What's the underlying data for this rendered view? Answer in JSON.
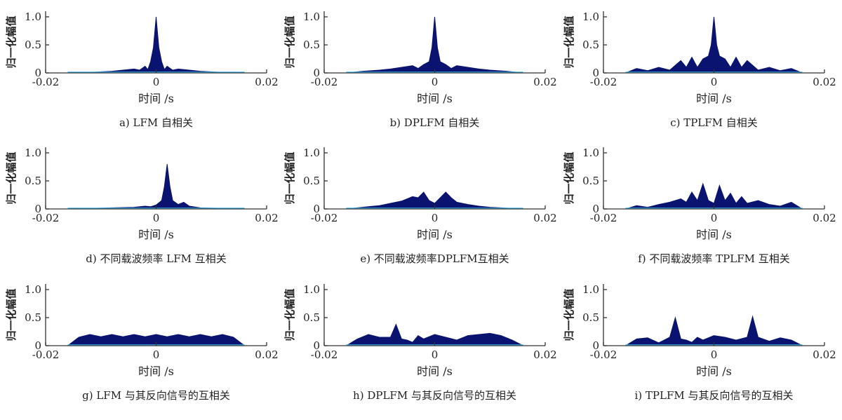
{
  "common": {
    "ylabel": "归一化幅值",
    "xlabel": "时间 /s",
    "xlim": [
      -0.02,
      0.02
    ],
    "ylim": [
      0,
      1.1
    ],
    "xticks": [
      -0.02,
      0,
      0.02
    ],
    "xtick_labels": [
      "-0.02",
      "0",
      "0.02"
    ],
    "yticks": [
      0,
      0.5,
      1.0
    ],
    "ytick_labels": [
      "0",
      "0.5",
      "1.0"
    ],
    "fill_color": "#0a1470",
    "highlight_color": "#3cb4e6"
  },
  "chart_data": [
    {
      "type": "area",
      "caption": "a)  LFM 自相关",
      "x": [
        -0.016,
        -0.012,
        -0.008,
        -0.006,
        -0.004,
        -0.003,
        -0.002,
        -0.0015,
        -0.001,
        -0.0005,
        0,
        0.0005,
        0.001,
        0.0015,
        0.002,
        0.003,
        0.004,
        0.006,
        0.008,
        0.012,
        0.016
      ],
      "y": [
        0,
        0.01,
        0.03,
        0.05,
        0.07,
        0.05,
        0.12,
        0.06,
        0.2,
        0.45,
        1.0,
        0.45,
        0.2,
        0.06,
        0.12,
        0.05,
        0.07,
        0.05,
        0.03,
        0.01,
        0
      ]
    },
    {
      "type": "area",
      "caption": "b)  DPLFM 自相关",
      "x": [
        -0.016,
        -0.013,
        -0.01,
        -0.008,
        -0.006,
        -0.004,
        -0.003,
        -0.002,
        -0.001,
        -0.0005,
        0,
        0.0005,
        0.001,
        0.002,
        0.003,
        0.004,
        0.006,
        0.008,
        0.01,
        0.013,
        0.016
      ],
      "y": [
        0,
        0.03,
        0.05,
        0.07,
        0.1,
        0.13,
        0.08,
        0.15,
        0.2,
        0.45,
        1.0,
        0.45,
        0.2,
        0.15,
        0.08,
        0.13,
        0.1,
        0.07,
        0.05,
        0.03,
        0
      ]
    },
    {
      "type": "area",
      "caption": "c)  TPLFM 自相关",
      "x": [
        -0.016,
        -0.014,
        -0.012,
        -0.01,
        -0.008,
        -0.006,
        -0.005,
        -0.004,
        -0.003,
        -0.002,
        -0.001,
        -0.0005,
        0,
        0.0005,
        0.001,
        0.002,
        0.003,
        0.004,
        0.005,
        0.006,
        0.008,
        0.01,
        0.012,
        0.014,
        0.016
      ],
      "y": [
        0,
        0.08,
        0.04,
        0.1,
        0.05,
        0.22,
        0.1,
        0.28,
        0.1,
        0.25,
        0.3,
        0.5,
        1.0,
        0.5,
        0.3,
        0.25,
        0.1,
        0.28,
        0.1,
        0.22,
        0.05,
        0.1,
        0.04,
        0.08,
        0
      ]
    },
    {
      "type": "area",
      "caption": "d)  不同载波频率 LFM 互相关",
      "x": [
        -0.016,
        -0.012,
        -0.008,
        -0.004,
        -0.002,
        -0.001,
        0,
        0.001,
        0.0015,
        0.002,
        0.0025,
        0.003,
        0.004,
        0.005,
        0.006,
        0.008,
        0.012,
        0.016
      ],
      "y": [
        0,
        0.01,
        0.02,
        0.03,
        0.05,
        0.04,
        0.07,
        0.15,
        0.4,
        0.8,
        0.4,
        0.15,
        0.08,
        0.12,
        0.05,
        0.02,
        0.01,
        0
      ]
    },
    {
      "type": "area",
      "caption": "e)  不同载波频率DPLFM互相关",
      "x": [
        -0.016,
        -0.014,
        -0.012,
        -0.01,
        -0.008,
        -0.006,
        -0.004,
        -0.003,
        -0.002,
        -0.001,
        0,
        0.001,
        0.002,
        0.003,
        0.004,
        0.006,
        0.008,
        0.01,
        0.012,
        0.014,
        0.016
      ],
      "y": [
        0,
        0.02,
        0.04,
        0.06,
        0.1,
        0.14,
        0.22,
        0.2,
        0.3,
        0.15,
        0.1,
        0.2,
        0.3,
        0.2,
        0.12,
        0.08,
        0.05,
        0.03,
        0.02,
        0.01,
        0
      ]
    },
    {
      "type": "area",
      "caption": "f)  不同载波频率 TPLFM 互相关",
      "x": [
        -0.016,
        -0.014,
        -0.012,
        -0.01,
        -0.008,
        -0.006,
        -0.005,
        -0.004,
        -0.003,
        -0.002,
        -0.001,
        0,
        0.001,
        0.002,
        0.003,
        0.004,
        0.005,
        0.006,
        0.008,
        0.01,
        0.012,
        0.014,
        0.016
      ],
      "y": [
        0,
        0.06,
        0.03,
        0.08,
        0.12,
        0.18,
        0.12,
        0.3,
        0.15,
        0.45,
        0.15,
        0.1,
        0.42,
        0.15,
        0.28,
        0.1,
        0.22,
        0.1,
        0.15,
        0.08,
        0.05,
        0.12,
        0
      ]
    },
    {
      "type": "area",
      "caption": "g)  LFM 与其反向信号的互相关",
      "x": [
        -0.016,
        -0.014,
        -0.012,
        -0.01,
        -0.008,
        -0.006,
        -0.004,
        -0.002,
        0,
        0.002,
        0.004,
        0.006,
        0.008,
        0.01,
        0.012,
        0.014,
        0.016
      ],
      "y": [
        0,
        0.15,
        0.2,
        0.16,
        0.2,
        0.16,
        0.2,
        0.16,
        0.2,
        0.16,
        0.2,
        0.16,
        0.2,
        0.16,
        0.2,
        0.15,
        0
      ]
    },
    {
      "type": "area",
      "caption": "h)  DPLFM 与其反向信号的互相关",
      "x": [
        -0.016,
        -0.014,
        -0.012,
        -0.01,
        -0.008,
        -0.007,
        -0.006,
        -0.005,
        -0.004,
        -0.003,
        -0.002,
        0,
        0.002,
        0.004,
        0.006,
        0.008,
        0.01,
        0.012,
        0.014,
        0.016
      ],
      "y": [
        0,
        0.12,
        0.2,
        0.15,
        0.15,
        0.38,
        0.12,
        0.1,
        0.06,
        0.18,
        0.12,
        0.2,
        0.15,
        0.1,
        0.18,
        0.2,
        0.22,
        0.18,
        0.1,
        0
      ]
    },
    {
      "type": "area",
      "caption": "i) TPLFM 与其反向信号的互相关",
      "x": [
        -0.016,
        -0.014,
        -0.012,
        -0.01,
        -0.008,
        -0.007,
        -0.006,
        -0.005,
        -0.004,
        -0.003,
        -0.002,
        0,
        0.002,
        0.004,
        0.006,
        0.007,
        0.008,
        0.01,
        0.012,
        0.014,
        0.016
      ],
      "y": [
        0,
        0.12,
        0.14,
        0.05,
        0.15,
        0.5,
        0.12,
        0.1,
        0.06,
        0.15,
        0.1,
        0.18,
        0.15,
        0.1,
        0.15,
        0.52,
        0.15,
        0.08,
        0.14,
        0.1,
        0
      ]
    }
  ]
}
